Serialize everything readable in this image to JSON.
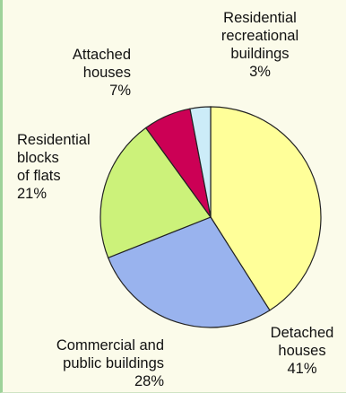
{
  "chart_data": {
    "type": "pie",
    "title": "",
    "slices": [
      {
        "label": [
          "Detached",
          "houses",
          "41%"
        ],
        "value": 41,
        "color": "#ffff99"
      },
      {
        "label": [
          "Commercial and",
          "public buildings",
          "28%"
        ],
        "value": 28,
        "color": "#99b3ee"
      },
      {
        "label": [
          "Residential",
          "blocks",
          "of flats",
          "21%"
        ],
        "value": 21,
        "color": "#ccf27a"
      },
      {
        "label": [
          "Attached",
          "houses",
          "7%"
        ],
        "value": 7,
        "color": "#cc0055"
      },
      {
        "label": [
          "Residential",
          "recreational",
          "buildings",
          "3%"
        ],
        "value": 3,
        "color": "#ccecf8"
      }
    ]
  }
}
